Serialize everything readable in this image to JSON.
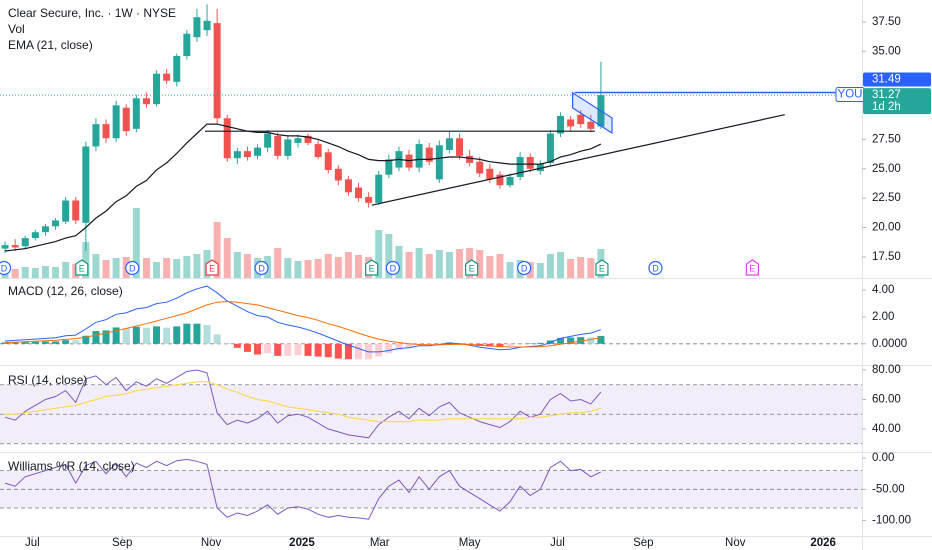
{
  "chart_data": [
    {
      "type": "candlestick",
      "title": "Clear Secure, Inc. · 1W · NYSE",
      "volume_name": "Vol",
      "up_color": "#26a69a",
      "down_color": "#ef5350",
      "xlim": [
        -0.5,
        84.85
      ],
      "xticks": [
        {
          "value": 2.7,
          "label": "Jul"
        },
        {
          "value": 11.6,
          "label": "Sep"
        },
        {
          "value": 20.4,
          "label": "Nov"
        },
        {
          "value": 29.4,
          "label": "2025"
        },
        {
          "value": 37.1,
          "label": "Mar"
        },
        {
          "value": 46,
          "label": "May"
        },
        {
          "value": 54.7,
          "label": "Jul"
        },
        {
          "value": 63.2,
          "label": "Sep"
        },
        {
          "value": 72.3,
          "label": "Nov"
        },
        {
          "value": 81,
          "label": "2026"
        }
      ],
      "ylim": [
        15.7,
        39.37
      ],
      "yticks": [
        {
          "value": 37.5,
          "label": "37.50"
        },
        {
          "value": 35,
          "label": "35.00"
        },
        {
          "value": 27.5,
          "label": "27.50"
        },
        {
          "value": 25,
          "label": "25.00"
        },
        {
          "value": 22.5,
          "label": "22.50"
        },
        {
          "value": 20,
          "label": "20.00"
        },
        {
          "value": 17.5,
          "label": "17.50"
        }
      ],
      "x": [
        0,
        1,
        2,
        3,
        4,
        5,
        6,
        7,
        8,
        9,
        10,
        11,
        12,
        13,
        14,
        15,
        16,
        17,
        18,
        19,
        20,
        21,
        22,
        23,
        24,
        25,
        26,
        27,
        28,
        29,
        30,
        31,
        32,
        33,
        34,
        35,
        36,
        37,
        38,
        39,
        40,
        41,
        42,
        43,
        44,
        45,
        46,
        47,
        48,
        49,
        50,
        51,
        52,
        53,
        54,
        55,
        56,
        57,
        58,
        59
      ],
      "open": [
        18.2,
        18.5,
        18.4,
        19.1,
        19.6,
        20.1,
        20.5,
        22.3,
        20.4,
        26.9,
        28.8,
        27.6,
        30.2,
        28.4,
        31.0,
        30.5,
        33.1,
        32.4,
        34.6,
        36.2,
        36.8,
        37.4,
        29.3,
        25.9,
        26.5,
        26.1,
        26.8,
        27.8,
        26.1,
        27.2,
        27.8,
        27.1,
        26.4,
        25.0,
        24.1,
        23.4,
        22.6,
        22.1,
        24.5,
        25.1,
        26.2,
        25.1,
        26.8,
        24.1,
        26.6,
        27.6,
        26.1,
        25.6,
        25.0,
        24.5,
        23.6,
        24.3,
        26.0,
        24.8,
        25.5,
        28.0,
        29.2,
        29.6,
        29.0,
        28.6
      ],
      "high": [
        18.8,
        19.0,
        19.3,
        19.8,
        20.3,
        20.8,
        22.6,
        22.6,
        27.3,
        29.3,
        29.2,
        30.8,
        30.5,
        31.3,
        31.5,
        33.4,
        33.5,
        34.8,
        36.8,
        38.6,
        39.0,
        38.6,
        29.6,
        26.8,
        26.9,
        27.1,
        28.3,
        28.1,
        27.8,
        27.9,
        28.0,
        27.4,
        26.7,
        25.3,
        24.4,
        23.8,
        23.0,
        24.8,
        26.2,
        26.9,
        26.6,
        27.5,
        27.2,
        27.4,
        28.2,
        28.0,
        26.6,
        26.0,
        25.4,
        24.8,
        24.6,
        26.4,
        26.3,
        25.7,
        28.3,
        29.8,
        29.5,
        30.0,
        29.6,
        34.1
      ],
      "low": [
        17.8,
        18.0,
        18.2,
        18.9,
        19.3,
        19.8,
        20.3,
        20.3,
        18.0,
        26.5,
        27.2,
        27.3,
        27.8,
        28.1,
        30.2,
        30.3,
        32.2,
        32.0,
        34.3,
        35.8,
        36.3,
        28.8,
        25.6,
        25.4,
        25.7,
        25.8,
        26.4,
        25.8,
        25.8,
        26.8,
        27.0,
        25.8,
        24.6,
        23.6,
        22.7,
        22.2,
        21.7,
        21.9,
        24.2,
        24.8,
        24.8,
        24.7,
        25.3,
        23.8,
        26.3,
        25.8,
        25.2,
        24.3,
        23.8,
        23.3,
        23.4,
        24.0,
        24.7,
        24.5,
        25.2,
        27.7,
        28.2,
        28.5,
        28.1,
        28.4
      ],
      "close": [
        18.5,
        18.3,
        19.1,
        19.6,
        20.1,
        20.6,
        22.3,
        20.6,
        26.9,
        28.8,
        27.6,
        30.4,
        28.2,
        31.0,
        30.5,
        33.1,
        32.5,
        34.6,
        36.5,
        37.9,
        37.6,
        29.3,
        25.9,
        26.5,
        26.0,
        26.8,
        28.0,
        26.1,
        27.5,
        27.6,
        27.2,
        26.0,
        24.9,
        24.0,
        23.0,
        22.5,
        22.1,
        24.5,
        25.8,
        26.5,
        25.1,
        27.1,
        25.6,
        27.0,
        27.6,
        26.1,
        25.5,
        24.6,
        24.1,
        23.6,
        24.3,
        26.0,
        25.0,
        25.4,
        28.0,
        29.5,
        28.6,
        28.8,
        28.4,
        31.27
      ],
      "volume": [
        1.0,
        0.9,
        1.1,
        1.0,
        1.2,
        1.1,
        1.6,
        1.4,
        3.6,
        2.4,
        1.8,
        2.0,
        2.1,
        7.0,
        2.0,
        1.6,
        2.0,
        1.9,
        2.2,
        2.4,
        2.8,
        5.6,
        4.0,
        2.6,
        2.4,
        2.0,
        2.2,
        3.0,
        2.0,
        1.7,
        1.8,
        1.9,
        2.4,
        2.1,
        2.6,
        2.3,
        2.1,
        4.8,
        4.4,
        3.2,
        2.6,
        3.0,
        2.4,
        2.8,
        2.6,
        2.9,
        3.0,
        2.8,
        2.2,
        2.4,
        1.6,
        1.8,
        1.6,
        1.5,
        2.4,
        2.6,
        1.9,
        2.1,
        2.0,
        2.9
      ],
      "overlays": [
        {
          "name": "EMA (21, close)",
          "color": "#131722",
          "values": [
            18.0,
            18.1,
            18.2,
            18.4,
            18.6,
            18.8,
            19.1,
            19.3,
            20.0,
            20.8,
            21.4,
            22.2,
            22.7,
            23.5,
            24.0,
            24.9,
            25.5,
            26.3,
            27.2,
            28.0,
            28.8,
            28.8,
            28.6,
            28.4,
            28.2,
            28.1,
            28.1,
            27.9,
            27.8,
            27.8,
            27.7,
            27.5,
            27.2,
            26.9,
            26.5,
            26.2,
            25.8,
            25.7,
            25.7,
            25.8,
            25.7,
            25.8,
            25.8,
            25.9,
            26.0,
            26.0,
            25.9,
            25.8,
            25.6,
            25.5,
            25.4,
            25.4,
            25.4,
            25.4,
            25.6,
            26.0,
            26.2,
            26.5,
            26.7,
            27.1
          ]
        }
      ],
      "drawings": [
        {
          "points": [
            [
              19.8,
              28.2
            ],
            [
              58.4,
              28.2
            ]
          ],
          "color": "#131722"
        },
        {
          "points": [
            [
              36.3,
              21.9
            ],
            [
              77.2,
              29.6
            ]
          ],
          "color": "#131722"
        },
        {
          "points": [
            [
              56.2,
              31.46
            ],
            [
              60.1,
              29.33
            ],
            [
              60.1,
              28.05
            ],
            [
              56.2,
              30.18
            ]
          ],
          "color": "#2962ff",
          "fill": "#2962ff"
        }
      ],
      "price_lines": [
        {
          "value": 31.49,
          "name": "YOU",
          "color": "#2962ff",
          "x": 56.4
        }
      ],
      "last_color": "#26a69a",
      "countdown": "1d 2h",
      "events": [
        {
          "x": -0.1,
          "label": "D",
          "shape": "circle",
          "color": "#2962ff"
        },
        {
          "x": 7.6,
          "label": "E",
          "shape": "flag",
          "color": "#089981"
        },
        {
          "x": 12.6,
          "label": "D",
          "shape": "circle",
          "color": "#2962ff"
        },
        {
          "x": 20.5,
          "label": "E",
          "shape": "flag",
          "color": "#f23645"
        },
        {
          "x": 25.4,
          "label": "D",
          "shape": "circle",
          "color": "#2962ff"
        },
        {
          "x": 36.3,
          "label": "E",
          "shape": "flag",
          "color": "#089981"
        },
        {
          "x": 38.4,
          "label": "D",
          "shape": "circle",
          "color": "#2962ff"
        },
        {
          "x": 46.2,
          "label": "E",
          "shape": "flag",
          "color": "#089981"
        },
        {
          "x": 51.4,
          "label": "D",
          "shape": "circle",
          "color": "#2962ff"
        },
        {
          "x": 59.1,
          "label": "E",
          "shape": "flag",
          "color": "#089981"
        },
        {
          "x": 64.4,
          "label": "D",
          "shape": "circle",
          "color": "#2962ff"
        },
        {
          "x": 74.0,
          "label": "E",
          "shape": "flag",
          "color": "#e040fb"
        }
      ]
    },
    {
      "type": "macd",
      "title": "MACD (12, 26, close)",
      "ylim": [
        -1.58,
        4.83
      ],
      "yticks": [
        {
          "value": 4,
          "label": "4.00"
        },
        {
          "value": 2,
          "label": "2.00"
        },
        {
          "value": 0,
          "label": "0.0000"
        }
      ],
      "levels": [
        0
      ],
      "series": [
        {
          "color": "#2962ff",
          "values": [
            0.2,
            0.25,
            0.3,
            0.35,
            0.4,
            0.45,
            0.6,
            0.65,
            1.1,
            1.6,
            1.8,
            2.2,
            2.3,
            2.6,
            2.7,
            3.0,
            3.1,
            3.4,
            3.8,
            4.1,
            4.3,
            3.8,
            3.2,
            2.8,
            2.4,
            2.1,
            2.0,
            1.6,
            1.4,
            1.25,
            1.05,
            0.8,
            0.5,
            0.2,
            -0.1,
            -0.35,
            -0.6,
            -0.6,
            -0.5,
            -0.35,
            -0.3,
            -0.15,
            -0.15,
            -0.05,
            0.05,
            0.0,
            -0.1,
            -0.25,
            -0.35,
            -0.45,
            -0.4,
            -0.25,
            -0.2,
            -0.15,
            0.1,
            0.4,
            0.55,
            0.7,
            0.8,
            1.05
          ]
        },
        {
          "color": "#ff6d00",
          "values": [
            0.1,
            0.12,
            0.15,
            0.19,
            0.23,
            0.27,
            0.33,
            0.39,
            0.5,
            0.65,
            0.8,
            0.98,
            1.14,
            1.33,
            1.5,
            1.7,
            1.9,
            2.1,
            2.3,
            2.6,
            2.9,
            3.1,
            3.15,
            3.1,
            3.0,
            2.9,
            2.7,
            2.5,
            2.3,
            2.1,
            1.95,
            1.75,
            1.5,
            1.3,
            1.05,
            0.8,
            0.55,
            0.35,
            0.2,
            0.1,
            0.0,
            -0.05,
            -0.07,
            -0.07,
            -0.05,
            -0.04,
            -0.05,
            -0.09,
            -0.14,
            -0.2,
            -0.24,
            -0.24,
            -0.23,
            -0.22,
            -0.15,
            -0.04,
            0.08,
            0.2,
            0.32,
            0.46
          ]
        }
      ],
      "histogram": [
        0.1,
        0.13,
        0.15,
        0.16,
        0.17,
        0.18,
        0.27,
        0.26,
        0.6,
        0.95,
        1.0,
        1.22,
        1.16,
        1.27,
        1.2,
        1.3,
        1.2,
        1.3,
        1.5,
        1.5,
        1.4,
        0.7,
        0.05,
        -0.3,
        -0.6,
        -0.8,
        -0.7,
        -0.9,
        -0.9,
        -0.85,
        -0.9,
        -0.95,
        -1.0,
        -1.1,
        -1.15,
        -1.15,
        -1.15,
        -0.95,
        -0.7,
        -0.45,
        -0.3,
        -0.1,
        -0.08,
        0.02,
        0.1,
        0.04,
        -0.05,
        -0.16,
        -0.21,
        -0.25,
        -0.16,
        -0.01,
        0.03,
        0.07,
        0.25,
        0.44,
        0.47,
        0.5,
        0.48,
        0.59
      ],
      "histogram_colors": [
        "#26a69a",
        "#b2dfdb",
        "#ff5252",
        "#ffcdd2"
      ]
    },
    {
      "type": "line",
      "title": "RSI (14, close)",
      "ylim": [
        24.4,
        82.7
      ],
      "yticks": [
        {
          "value": 80,
          "label": "80.00"
        },
        {
          "value": 60,
          "label": "60.00"
        },
        {
          "value": 40,
          "label": "40.00"
        }
      ],
      "levels": [
        70,
        50,
        30
      ],
      "band_color": "#7e57c2",
      "series": [
        {
          "color": "#7e57c2",
          "values": [
            48,
            46,
            52,
            56,
            60,
            62,
            66,
            58,
            74,
            76,
            70,
            75,
            66,
            72,
            69,
            74,
            71,
            75,
            79,
            80,
            78,
            51,
            43,
            46,
            44,
            47,
            52,
            44,
            49,
            50,
            48,
            44,
            40,
            38,
            36,
            35,
            34,
            43,
            48,
            52,
            47,
            54,
            49,
            55,
            58,
            51,
            48,
            45,
            43,
            41,
            45,
            52,
            48,
            50,
            60,
            64,
            59,
            60,
            57,
            65
          ]
        },
        {
          "color": "#fdd835",
          "values": [
            50,
            50,
            51,
            52,
            53,
            54,
            55,
            56,
            58,
            60,
            62,
            63,
            64,
            66,
            67,
            68,
            69,
            70,
            71,
            72,
            72,
            70,
            67,
            65,
            62,
            60,
            59,
            57,
            55,
            54,
            53,
            52,
            51,
            50,
            48,
            47,
            46,
            45,
            45,
            45,
            45,
            46,
            46,
            46,
            47,
            47,
            47,
            47,
            47,
            47,
            47,
            47,
            48,
            48,
            49,
            50,
            51,
            51,
            52,
            54
          ]
        }
      ]
    },
    {
      "type": "line",
      "title": "Williams %R (14, close)",
      "ylim": [
        -125,
        8.3
      ],
      "yticks": [
        {
          "value": 0,
          "label": "0.00"
        },
        {
          "value": -50,
          "label": "-50.00"
        },
        {
          "value": -100,
          "label": "-100.00"
        }
      ],
      "levels": [
        -20,
        -50,
        -80
      ],
      "band_color": "#7e57c2",
      "series": [
        {
          "color": "#7e57c2",
          "values": [
            -40,
            -45,
            -30,
            -25,
            -20,
            -15,
            -10,
            -40,
            -12,
            -5,
            -25,
            -8,
            -30,
            -8,
            -15,
            -5,
            -12,
            -4,
            -2,
            -5,
            -10,
            -80,
            -95,
            -88,
            -92,
            -85,
            -75,
            -90,
            -80,
            -78,
            -82,
            -90,
            -95,
            -92,
            -95,
            -96,
            -98,
            -65,
            -45,
            -35,
            -55,
            -30,
            -50,
            -30,
            -20,
            -45,
            -55,
            -65,
            -75,
            -85,
            -70,
            -45,
            -60,
            -50,
            -15,
            -5,
            -20,
            -18,
            -30,
            -22
          ]
        }
      ]
    }
  ]
}
